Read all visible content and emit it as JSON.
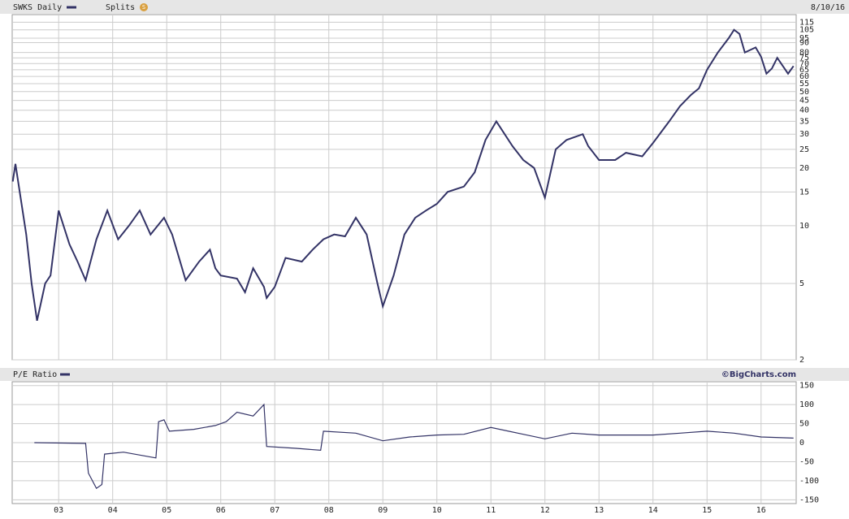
{
  "date": "8/10/16",
  "brand": "©BigCharts.com",
  "splits_label": "Splits",
  "splits_icon": "S",
  "chart_data": [
    {
      "type": "line",
      "title": "SWKS Daily",
      "log_scale": true,
      "grid": true,
      "xlim": [
        2002.14,
        2016.65
      ],
      "ylim": [
        2,
        126
      ],
      "yticks": [
        2,
        5,
        10,
        15,
        20,
        25,
        30,
        35,
        40,
        45,
        50,
        55,
        60,
        65,
        70,
        75,
        80,
        90,
        95,
        105,
        115
      ],
      "x": [
        2002.15,
        2002.2,
        2002.4,
        2002.5,
        2002.6,
        2002.75,
        2002.85,
        2003.0,
        2003.2,
        2003.35,
        2003.5,
        2003.7,
        2003.9,
        2004.1,
        2004.3,
        2004.5,
        2004.7,
        2004.95,
        2005.1,
        2005.35,
        2005.6,
        2005.8,
        2005.9,
        2006.0,
        2006.3,
        2006.45,
        2006.6,
        2006.8,
        2006.85,
        2007.0,
        2007.2,
        2007.5,
        2007.7,
        2007.9,
        2008.1,
        2008.3,
        2008.5,
        2008.7,
        2008.9,
        2009.0,
        2009.2,
        2009.4,
        2009.6,
        2009.8,
        2010.0,
        2010.2,
        2010.5,
        2010.7,
        2010.9,
        2011.1,
        2011.4,
        2011.6,
        2011.8,
        2012.0,
        2012.2,
        2012.4,
        2012.7,
        2012.8,
        2013.0,
        2013.3,
        2013.5,
        2013.8,
        2014.0,
        2014.3,
        2014.5,
        2014.7,
        2014.85,
        2015.0,
        2015.2,
        2015.4,
        2015.5,
        2015.6,
        2015.7,
        2015.9,
        2016.0,
        2016.1,
        2016.2,
        2016.3,
        2016.5,
        2016.6
      ],
      "series": [
        {
          "name": "SWKS Daily",
          "color": "#333366",
          "values": [
            17,
            21,
            9,
            5,
            3.2,
            5,
            5.5,
            12,
            8,
            6.5,
            5.2,
            8.5,
            12,
            8.5,
            10,
            12,
            9,
            11,
            9,
            5.2,
            6.5,
            7.5,
            6,
            5.5,
            5.3,
            4.5,
            6,
            4.8,
            4.2,
            4.8,
            6.8,
            6.5,
            7.5,
            8.5,
            9,
            8.8,
            11,
            9,
            5,
            3.8,
            5.5,
            9,
            11,
            12,
            13,
            15,
            16,
            19,
            28,
            35,
            26,
            22,
            20,
            14,
            25,
            28,
            30,
            26,
            22,
            22,
            24,
            23,
            27,
            35,
            42,
            48,
            52,
            65,
            80,
            95,
            105,
            100,
            80,
            85,
            76,
            62,
            66,
            75,
            62,
            68
          ]
        }
      ]
    },
    {
      "type": "line",
      "title": "P/E Ratio",
      "grid": true,
      "xlim": [
        2002.14,
        2016.65
      ],
      "ylim": [
        -160,
        160
      ],
      "yticks": [
        -150,
        -100,
        -50,
        0,
        50,
        100,
        150
      ],
      "xticks": [
        {
          "value": 2003,
          "label": "03"
        },
        {
          "value": 2004,
          "label": "04"
        },
        {
          "value": 2005,
          "label": "05"
        },
        {
          "value": 2006,
          "label": "06"
        },
        {
          "value": 2007,
          "label": "07"
        },
        {
          "value": 2008,
          "label": "08"
        },
        {
          "value": 2009,
          "label": "09"
        },
        {
          "value": 2010,
          "label": "10"
        },
        {
          "value": 2011,
          "label": "11"
        },
        {
          "value": 2012,
          "label": "12"
        },
        {
          "value": 2013,
          "label": "13"
        },
        {
          "value": 2014,
          "label": "14"
        },
        {
          "value": 2015,
          "label": "15"
        },
        {
          "value": 2016,
          "label": "16"
        }
      ],
      "x": [
        2002.55,
        2003.5,
        2003.55,
        2003.7,
        2003.8,
        2003.85,
        2004.2,
        2004.8,
        2004.85,
        2004.95,
        2005.05,
        2005.5,
        2005.9,
        2006.1,
        2006.3,
        2006.6,
        2006.8,
        2006.85,
        2007.4,
        2007.85,
        2007.9,
        2008.5,
        2009.0,
        2009.5,
        2010.0,
        2010.5,
        2011.0,
        2011.5,
        2012.0,
        2012.5,
        2013.0,
        2013.5,
        2014.0,
        2014.5,
        2015.0,
        2015.5,
        2016.0,
        2016.6
      ],
      "series": [
        {
          "name": "P/E Ratio",
          "color": "#333366",
          "values": [
            0,
            -2,
            -80,
            -120,
            -110,
            -30,
            -25,
            -40,
            55,
            60,
            30,
            35,
            45,
            55,
            80,
            70,
            100,
            -10,
            -15,
            -20,
            30,
            25,
            5,
            15,
            20,
            22,
            40,
            25,
            10,
            25,
            20,
            20,
            20,
            25,
            30,
            25,
            15,
            12
          ]
        }
      ]
    }
  ]
}
